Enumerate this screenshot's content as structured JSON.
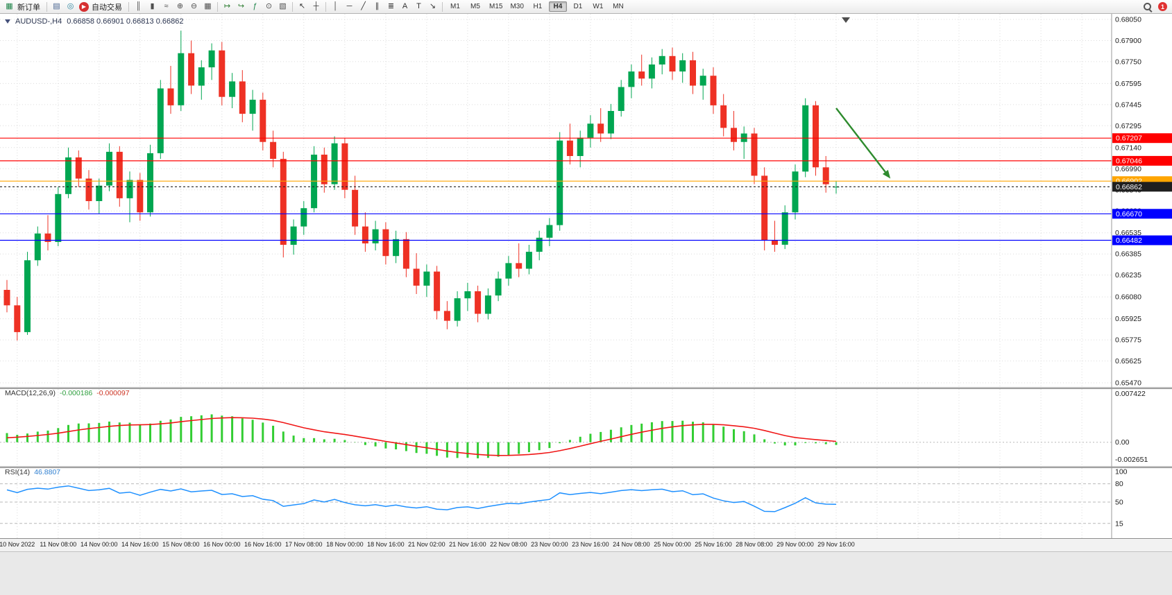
{
  "toolbar": {
    "new_order_label": "新订单",
    "autotrading_label": "自动交易",
    "timeframes": [
      "M1",
      "M5",
      "M15",
      "M30",
      "H1",
      "H4",
      "D1",
      "W1",
      "MN"
    ],
    "active_timeframe": "H4",
    "notification_count": "1",
    "items": [
      {
        "kind": "icon",
        "name": "new-order",
        "glyph": "▦",
        "color": "#1d8348"
      },
      {
        "kind": "label",
        "name": "new-order-label",
        "bind": "new_order_label"
      },
      {
        "kind": "sep"
      },
      {
        "kind": "icon",
        "name": "charts-window",
        "glyph": "▤",
        "color": "#46628f"
      },
      {
        "kind": "icon",
        "name": "market-watch",
        "glyph": "◎",
        "color": "#2e86a0"
      },
      {
        "kind": "icon",
        "name": "autotrading",
        "glyph": "▶",
        "color": "#ffffff",
        "round": true,
        "bg": "#d63031"
      },
      {
        "kind": "label",
        "name": "autotrading-label",
        "bind": "autotrading_label"
      },
      {
        "kind": "sep"
      },
      {
        "kind": "icon",
        "name": "bar-chart-mode",
        "glyph": "║",
        "color": "#4f4f4f"
      },
      {
        "kind": "icon",
        "name": "candlestick-mode",
        "glyph": "▮",
        "color": "#4f4f4f"
      },
      {
        "kind": "icon",
        "name": "line-chart-mode",
        "glyph": "≈",
        "color": "#4f4f4f"
      },
      {
        "kind": "icon",
        "name": "zoom-in",
        "glyph": "⊕",
        "color": "#4f4f4f"
      },
      {
        "kind": "icon",
        "name": "zoom-out",
        "glyph": "⊖",
        "color": "#4f4f4f"
      },
      {
        "kind": "icon",
        "name": "tile-windows",
        "glyph": "▦",
        "color": "#4f4f4f"
      },
      {
        "kind": "sep"
      },
      {
        "kind": "icon",
        "name": "auto-scroll",
        "glyph": "↦",
        "color": "#2e7d32"
      },
      {
        "kind": "icon",
        "name": "chart-shift",
        "glyph": "↪",
        "color": "#2e7d32"
      },
      {
        "kind": "icon",
        "name": "indicators",
        "glyph": "ƒ",
        "color": "#1d8348"
      },
      {
        "kind": "icon",
        "name": "period-selector",
        "glyph": "⊙",
        "color": "#4f4f4f"
      },
      {
        "kind": "icon",
        "name": "templates",
        "glyph": "▧",
        "color": "#4f4f4f"
      },
      {
        "kind": "sep"
      },
      {
        "kind": "icon",
        "name": "cursor",
        "glyph": "↖",
        "color": "#333333"
      },
      {
        "kind": "icon",
        "name": "crosshair",
        "glyph": "┼",
        "color": "#333333"
      },
      {
        "kind": "sep"
      },
      {
        "kind": "icon",
        "name": "vertical-line",
        "glyph": "│",
        "color": "#333333"
      },
      {
        "kind": "icon",
        "name": "horizontal-line",
        "glyph": "─",
        "color": "#333333"
      },
      {
        "kind": "icon",
        "name": "trendline",
        "glyph": "╱",
        "color": "#333333"
      },
      {
        "kind": "icon",
        "name": "equidistant-channel",
        "glyph": "∥",
        "color": "#333333"
      },
      {
        "kind": "icon",
        "name": "fibonacci",
        "glyph": "≣",
        "color": "#333333"
      },
      {
        "kind": "icon",
        "name": "text",
        "glyph": "A",
        "color": "#333333"
      },
      {
        "kind": "icon",
        "name": "text-label",
        "glyph": "T",
        "color": "#333333"
      },
      {
        "kind": "icon",
        "name": "arrows-tool",
        "glyph": "↘",
        "color": "#333333"
      },
      {
        "kind": "sep"
      },
      {
        "kind": "tf-group"
      },
      {
        "kind": "spacer"
      },
      {
        "kind": "search"
      },
      {
        "kind": "badge",
        "name": "notifications"
      }
    ]
  },
  "chart": {
    "title": "AUDUSD-,H4",
    "ohlc": "0.66858 0.66901 0.66813 0.66862",
    "price_axis": [
      "0.68050",
      "0.67900",
      "0.67750",
      "0.67595",
      "0.67445",
      "0.67295",
      "0.67140",
      "0.66990",
      "0.66840",
      "0.66690",
      "0.66535",
      "0.66385",
      "0.66235",
      "0.66080",
      "0.65925",
      "0.65775",
      "0.65625",
      "0.65470"
    ],
    "levels": [
      {
        "price": 0.67207,
        "label": "0.67207",
        "color": "#ff0000",
        "style": "line"
      },
      {
        "price": 0.67046,
        "label": "0.67046",
        "color": "#ff0000",
        "style": "line"
      },
      {
        "price": 0.66902,
        "label": "0.66902",
        "color": "#ffa500",
        "style": "line"
      },
      {
        "price": 0.66862,
        "label": "0.66862",
        "color": "#1f1f1f",
        "style": "current"
      },
      {
        "price": 0.6667,
        "label": "0.66670",
        "color": "#0000ff",
        "style": "line"
      },
      {
        "price": 0.66482,
        "label": "0.66482",
        "color": "#0000ff",
        "style": "line"
      }
    ],
    "time_labels": [
      "10 Nov 2022",
      "11 Nov 08:00",
      "14 Nov 00:00",
      "14 Nov 16:00",
      "15 Nov 08:00",
      "16 Nov 00:00",
      "16 Nov 16:00",
      "17 Nov 08:00",
      "18 Nov 00:00",
      "18 Nov 16:00",
      "21 Nov 02:00",
      "21 Nov 16:00",
      "22 Nov 08:00",
      "23 Nov 00:00",
      "23 Nov 16:00",
      "24 Nov 08:00",
      "25 Nov 00:00",
      "25 Nov 16:00",
      "28 Nov 08:00",
      "29 Nov 00:00",
      "29 Nov 16:00"
    ],
    "annotations": {
      "trend_arrow": {
        "from": {
          "bar": 81,
          "price": 0.6742
        },
        "to": {
          "bar": 86.3,
          "price": 0.6692
        },
        "color": "#2e8b2e"
      }
    }
  },
  "chart_data": {
    "type": "candlestick",
    "symbol": "AUDUSD-",
    "timeframe": "H4",
    "up_color": "#00a651",
    "down_color": "#ee3124",
    "price_max": 0.6805,
    "price_min": 0.6547,
    "current": {
      "open": 0.66858,
      "high": 0.66901,
      "low": 0.66813,
      "close": 0.66862
    },
    "candles": [
      [
        0.6613,
        0.662,
        0.6597,
        0.6602
      ],
      [
        0.6602,
        0.6608,
        0.6577,
        0.6583
      ],
      [
        0.6583,
        0.664,
        0.6581,
        0.6634
      ],
      [
        0.6634,
        0.6658,
        0.663,
        0.6653
      ],
      [
        0.6653,
        0.6666,
        0.6641,
        0.6647
      ],
      [
        0.6647,
        0.6686,
        0.6644,
        0.6681
      ],
      [
        0.6681,
        0.6714,
        0.6678,
        0.6707
      ],
      [
        0.6707,
        0.6712,
        0.6686,
        0.6692
      ],
      [
        0.6692,
        0.6698,
        0.667,
        0.6676
      ],
      [
        0.6676,
        0.6692,
        0.6667,
        0.6687
      ],
      [
        0.6687,
        0.6717,
        0.6683,
        0.6711
      ],
      [
        0.6711,
        0.6715,
        0.6672,
        0.6678
      ],
      [
        0.6678,
        0.6697,
        0.6661,
        0.6691
      ],
      [
        0.6691,
        0.6696,
        0.6662,
        0.6668
      ],
      [
        0.6668,
        0.6716,
        0.6665,
        0.671
      ],
      [
        0.671,
        0.6762,
        0.6706,
        0.6756
      ],
      [
        0.6756,
        0.6772,
        0.6738,
        0.6744
      ],
      [
        0.6744,
        0.6797,
        0.674,
        0.6781
      ],
      [
        0.6781,
        0.679,
        0.6752,
        0.6758
      ],
      [
        0.6758,
        0.6776,
        0.6748,
        0.6771
      ],
      [
        0.6771,
        0.6788,
        0.6762,
        0.6783
      ],
      [
        0.6783,
        0.6789,
        0.6744,
        0.675
      ],
      [
        0.675,
        0.6767,
        0.6742,
        0.6761
      ],
      [
        0.6761,
        0.6769,
        0.6732,
        0.6738
      ],
      [
        0.6738,
        0.6755,
        0.6726,
        0.6748
      ],
      [
        0.6748,
        0.6753,
        0.6712,
        0.6718
      ],
      [
        0.6718,
        0.6726,
        0.67,
        0.6706
      ],
      [
        0.6706,
        0.6711,
        0.6636,
        0.6645
      ],
      [
        0.6645,
        0.6663,
        0.6638,
        0.6658
      ],
      [
        0.6658,
        0.6676,
        0.6652,
        0.6671
      ],
      [
        0.6671,
        0.6715,
        0.6668,
        0.6709
      ],
      [
        0.6709,
        0.6714,
        0.6682,
        0.6688
      ],
      [
        0.6688,
        0.6722,
        0.6684,
        0.6717
      ],
      [
        0.6717,
        0.6721,
        0.6678,
        0.6684
      ],
      [
        0.6684,
        0.6694,
        0.6652,
        0.6658
      ],
      [
        0.6658,
        0.6668,
        0.664,
        0.6646
      ],
      [
        0.6646,
        0.6662,
        0.6641,
        0.6656
      ],
      [
        0.6656,
        0.6661,
        0.6631,
        0.6637
      ],
      [
        0.6637,
        0.6655,
        0.6632,
        0.6649
      ],
      [
        0.6649,
        0.6654,
        0.6622,
        0.6628
      ],
      [
        0.6628,
        0.6639,
        0.661,
        0.6616
      ],
      [
        0.6616,
        0.6631,
        0.6608,
        0.6626
      ],
      [
        0.6626,
        0.663,
        0.6592,
        0.6598
      ],
      [
        0.6598,
        0.6605,
        0.6585,
        0.6591
      ],
      [
        0.6591,
        0.6612,
        0.6587,
        0.6607
      ],
      [
        0.6607,
        0.6618,
        0.6598,
        0.6612
      ],
      [
        0.6612,
        0.6616,
        0.659,
        0.6596
      ],
      [
        0.6596,
        0.6614,
        0.6592,
        0.6609
      ],
      [
        0.6609,
        0.6626,
        0.6605,
        0.6621
      ],
      [
        0.6621,
        0.6637,
        0.6616,
        0.6632
      ],
      [
        0.6632,
        0.6646,
        0.6622,
        0.6628
      ],
      [
        0.6628,
        0.6645,
        0.6624,
        0.664
      ],
      [
        0.664,
        0.6655,
        0.6634,
        0.665
      ],
      [
        0.665,
        0.6664,
        0.6644,
        0.6659
      ],
      [
        0.6659,
        0.6725,
        0.6655,
        0.6719
      ],
      [
        0.6719,
        0.6731,
        0.6702,
        0.6708
      ],
      [
        0.6708,
        0.6726,
        0.67,
        0.6721
      ],
      [
        0.6721,
        0.6737,
        0.6714,
        0.6731
      ],
      [
        0.6731,
        0.6742,
        0.6718,
        0.6724
      ],
      [
        0.6724,
        0.6745,
        0.672,
        0.674
      ],
      [
        0.674,
        0.6762,
        0.6736,
        0.6757
      ],
      [
        0.6757,
        0.6773,
        0.6749,
        0.6768
      ],
      [
        0.6768,
        0.678,
        0.6758,
        0.6763
      ],
      [
        0.6763,
        0.6778,
        0.6756,
        0.6773
      ],
      [
        0.6773,
        0.6784,
        0.6766,
        0.6779
      ],
      [
        0.6779,
        0.6785,
        0.6762,
        0.6768
      ],
      [
        0.6768,
        0.6781,
        0.676,
        0.6776
      ],
      [
        0.6776,
        0.6782,
        0.6752,
        0.6758
      ],
      [
        0.6758,
        0.677,
        0.6748,
        0.6765
      ],
      [
        0.6765,
        0.6771,
        0.6738,
        0.6744
      ],
      [
        0.6744,
        0.6752,
        0.6722,
        0.6728
      ],
      [
        0.6728,
        0.674,
        0.6712,
        0.6718
      ],
      [
        0.6718,
        0.6729,
        0.6706,
        0.6724
      ],
      [
        0.6724,
        0.6728,
        0.6688,
        0.6694
      ],
      [
        0.6694,
        0.67,
        0.6641,
        0.6648
      ],
      [
        0.6648,
        0.6662,
        0.664,
        0.6645
      ],
      [
        0.6645,
        0.6673,
        0.6642,
        0.6668
      ],
      [
        0.6668,
        0.6702,
        0.6663,
        0.6697
      ],
      [
        0.6697,
        0.6749,
        0.6693,
        0.6744
      ],
      [
        0.6744,
        0.6747,
        0.6694,
        0.67
      ],
      [
        0.67,
        0.6708,
        0.6682,
        0.6688
      ],
      [
        0.66858,
        0.66901,
        0.66813,
        0.66862
      ]
    ]
  },
  "macd": {
    "label": "MACD(12,26,9)",
    "value_main": "-0.000186",
    "value_signal": "-0.000097",
    "axis": [
      "0.007422",
      "0.00",
      "-0.002651"
    ],
    "histogram_color": "#32cd32",
    "signal_color": "#f01616"
  },
  "rsi": {
    "label": "RSI(14)",
    "value": "46.8807",
    "axis": [
      "100",
      "80",
      "50",
      "15"
    ],
    "levels": [
      80,
      50,
      15
    ],
    "line_color": "#1e90ff"
  }
}
